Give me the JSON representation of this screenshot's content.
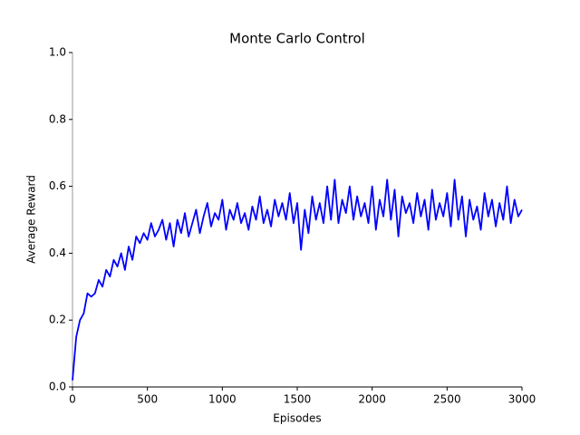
{
  "chart_data": {
    "type": "line",
    "title": "Monte Carlo Control",
    "xlabel": "Episodes",
    "ylabel": "Average Reward",
    "xlim": [
      0,
      3000
    ],
    "ylim": [
      0,
      1
    ],
    "xticks": [
      0,
      500,
      1000,
      1500,
      2000,
      2500,
      3000
    ],
    "yticks": [
      {
        "value": 0,
        "label": "0.0"
      },
      0.2,
      0.4,
      0.6,
      0.8,
      {
        "value": 1,
        "label": "1.0"
      }
    ],
    "series": [
      {
        "color": "#0000ff",
        "x": [
          0,
          25,
          50,
          75,
          100,
          125,
          150,
          175,
          200,
          225,
          250,
          275,
          300,
          325,
          350,
          375,
          400,
          425,
          450,
          475,
          500,
          525,
          550,
          575,
          600,
          625,
          650,
          675,
          700,
          725,
          750,
          775,
          800,
          825,
          850,
          875,
          900,
          925,
          950,
          975,
          1000,
          1025,
          1050,
          1075,
          1100,
          1125,
          1150,
          1175,
          1200,
          1225,
          1250,
          1275,
          1300,
          1325,
          1350,
          1375,
          1400,
          1425,
          1450,
          1475,
          1500,
          1525,
          1550,
          1575,
          1600,
          1625,
          1650,
          1675,
          1700,
          1725,
          1750,
          1775,
          1800,
          1825,
          1850,
          1875,
          1900,
          1925,
          1950,
          1975,
          2000,
          2025,
          2050,
          2075,
          2100,
          2125,
          2150,
          2175,
          2200,
          2225,
          2250,
          2275,
          2300,
          2325,
          2350,
          2375,
          2400,
          2425,
          2450,
          2475,
          2500,
          2525,
          2550,
          2575,
          2600,
          2625,
          2650,
          2675,
          2700,
          2725,
          2750,
          2775,
          2800,
          2825,
          2850,
          2875,
          2900,
          2925,
          2950,
          2975,
          3000
        ],
        "values": [
          0.02,
          0.15,
          0.2,
          0.22,
          0.28,
          0.27,
          0.28,
          0.32,
          0.3,
          0.35,
          0.33,
          0.38,
          0.36,
          0.4,
          0.35,
          0.42,
          0.38,
          0.45,
          0.43,
          0.46,
          0.44,
          0.49,
          0.45,
          0.47,
          0.5,
          0.44,
          0.49,
          0.42,
          0.5,
          0.46,
          0.52,
          0.45,
          0.49,
          0.53,
          0.46,
          0.51,
          0.55,
          0.48,
          0.52,
          0.5,
          0.56,
          0.47,
          0.53,
          0.5,
          0.55,
          0.49,
          0.52,
          0.47,
          0.54,
          0.5,
          0.57,
          0.49,
          0.53,
          0.48,
          0.56,
          0.51,
          0.55,
          0.5,
          0.58,
          0.49,
          0.55,
          0.41,
          0.53,
          0.46,
          0.57,
          0.5,
          0.55,
          0.49,
          0.6,
          0.5,
          0.62,
          0.49,
          0.56,
          0.52,
          0.6,
          0.5,
          0.57,
          0.51,
          0.55,
          0.49,
          0.6,
          0.47,
          0.56,
          0.51,
          0.62,
          0.5,
          0.59,
          0.45,
          0.57,
          0.52,
          0.55,
          0.49,
          0.58,
          0.51,
          0.56,
          0.47,
          0.59,
          0.5,
          0.55,
          0.51,
          0.58,
          0.48,
          0.62,
          0.5,
          0.57,
          0.45,
          0.56,
          0.5,
          0.54,
          0.47,
          0.58,
          0.51,
          0.56,
          0.48,
          0.55,
          0.5,
          0.6,
          0.49,
          0.56,
          0.51,
          0.53
        ]
      }
    ]
  }
}
